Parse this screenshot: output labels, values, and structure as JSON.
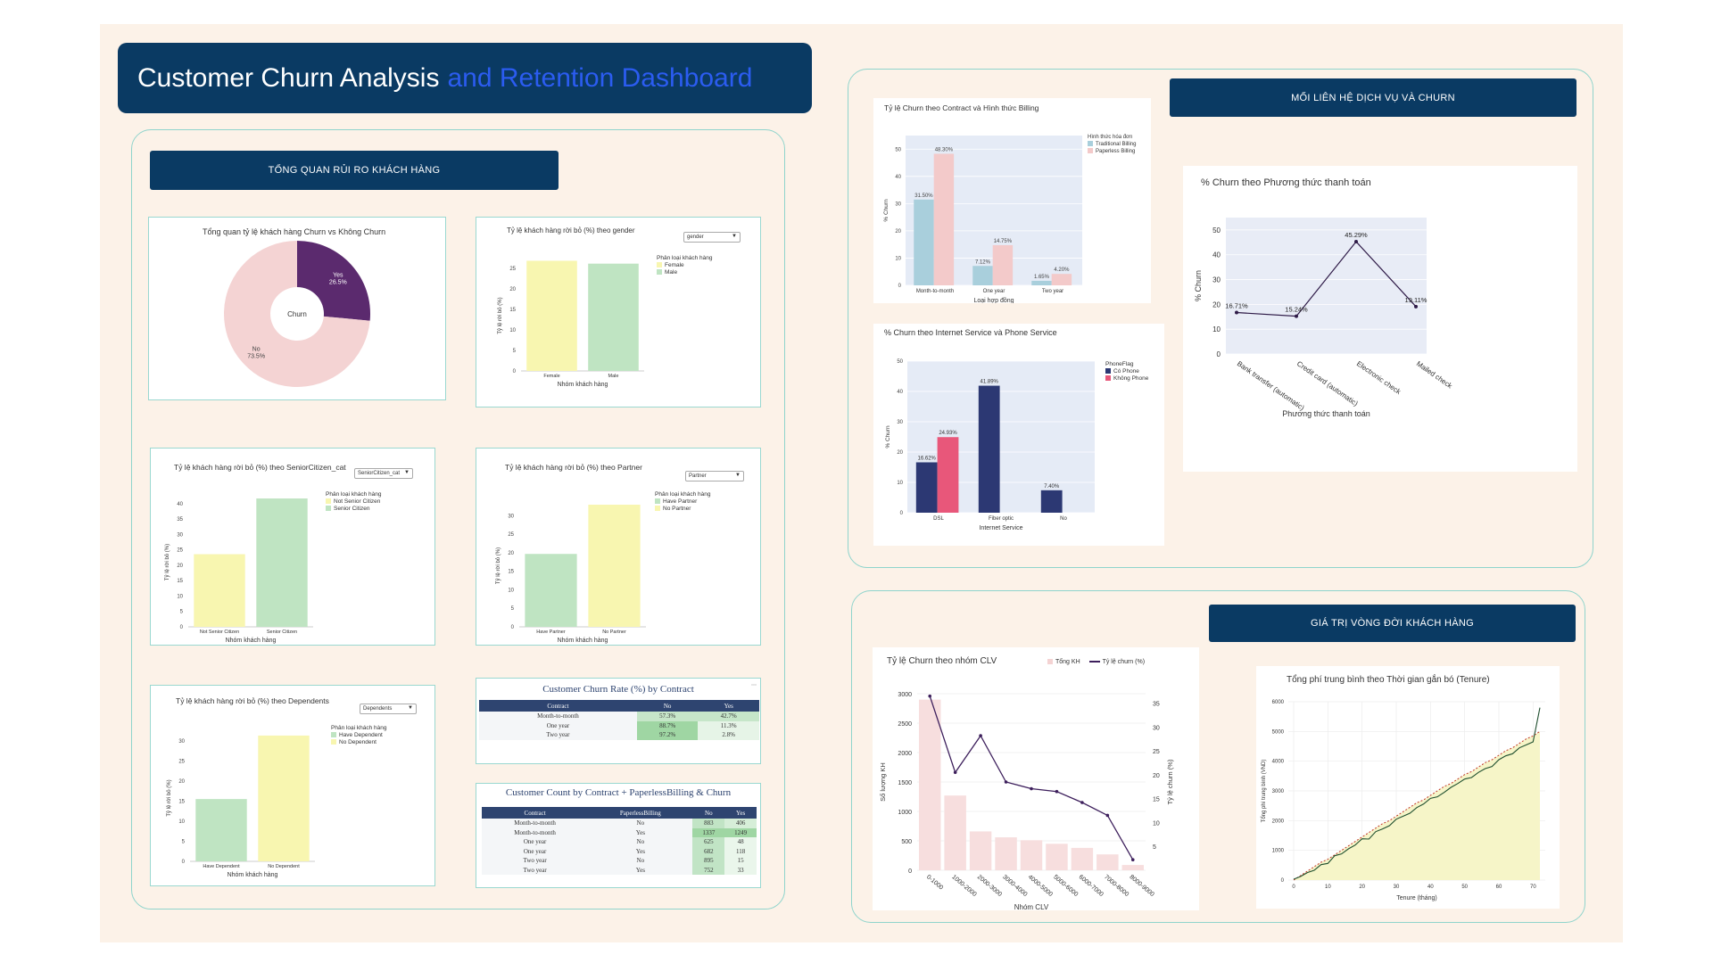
{
  "dashboard": {
    "title_part1": "Customer Churn Analysis",
    "title_part2": "and Retention Dashboard"
  },
  "sections": {
    "risk": "TỔNG QUAN RỦI RO KHÁCH HÀNG",
    "service": "MỐI LIÊN HỆ DỊCH VỤ VÀ CHURN",
    "clv": "GIÁ TRỊ VÒNG ĐỜI KHÁCH HÀNG"
  },
  "colors": {
    "navy": "#0a3a63",
    "accent_blue": "#2b5cf0",
    "teal_border": "#8fd4cc",
    "yellow_bar": "#f8f6b0",
    "green_bar": "#bfe4c2"
  },
  "pie": {
    "title": "Tổng quan tỷ lệ khách hàng Churn vs Không Churn",
    "center": "Churn",
    "chart_data": {
      "type": "pie",
      "categories": [
        "Yes",
        "No"
      ],
      "values": [
        26.5,
        73.5
      ],
      "labels": [
        "Yes\n26.5%",
        "No\n73.5%"
      ],
      "colors": [
        "#5b2a6e",
        "#f4d3d3"
      ]
    }
  },
  "gender": {
    "title": "Tỷ lệ khách hàng rời bỏ (%) theo gender",
    "dropdown": "gender",
    "legend_title": "Phân loại khách hàng",
    "chart_data": {
      "type": "bar",
      "categories": [
        "Female",
        "Male"
      ],
      "values": [
        26.9,
        26.2
      ],
      "series_names": [
        "Female",
        "Male"
      ],
      "xlabel": "Nhóm khách hàng",
      "ylabel": "Tỷ lệ rời bỏ (%)",
      "ylim": [
        0,
        27
      ],
      "yticks": [
        0,
        5,
        10,
        15,
        20,
        25
      ]
    }
  },
  "senior": {
    "title": "Tỷ lệ khách hàng rời bỏ (%) theo SeniorCitizen_cat",
    "dropdown": "SeniorCitizen_cat",
    "legend_title": "Phân loại khách hàng",
    "chart_data": {
      "type": "bar",
      "categories": [
        "Not Senior Citizen",
        "Senior Citizen"
      ],
      "values": [
        23.6,
        41.7
      ],
      "series_names": [
        "Not Senior Citizen",
        "Senior Citizen"
      ],
      "xlabel": "Nhóm khách hàng",
      "ylabel": "Tỷ lệ rời bỏ (%)",
      "ylim": [
        0,
        42
      ],
      "yticks": [
        0,
        5,
        10,
        15,
        20,
        25,
        30,
        35,
        40
      ]
    }
  },
  "partner": {
    "title": "Tỷ lệ khách hàng rời bỏ (%) theo Partner",
    "dropdown": "Partner",
    "legend_title": "Phân loại khách hàng",
    "chart_data": {
      "type": "bar",
      "categories": [
        "Have Partner",
        "No Partner"
      ],
      "values": [
        19.7,
        33.0
      ],
      "series_names": [
        "Have Partner",
        "No Partner"
      ],
      "xlabel": "Nhóm khách hàng",
      "ylabel": "Tỷ lệ rời bỏ (%)",
      "ylim": [
        0,
        33
      ],
      "yticks": [
        0,
        5,
        10,
        15,
        20,
        25,
        30
      ]
    }
  },
  "dependents": {
    "title": "Tỷ lệ khách hàng rời bỏ (%) theo Dependents",
    "dropdown": "Dependents",
    "legend_title": "Phân loại khách hàng",
    "chart_data": {
      "type": "bar",
      "categories": [
        "Have Dependent",
        "No Dependent"
      ],
      "values": [
        15.5,
        31.3
      ],
      "series_names": [
        "Have Dependent",
        "No Dependent"
      ],
      "xlabel": "Nhóm khách hàng",
      "ylabel": "Tỷ lệ rời bỏ (%)",
      "ylim": [
        0,
        31.5
      ],
      "yticks": [
        0,
        5,
        10,
        15,
        20,
        25,
        30
      ]
    }
  },
  "table1": {
    "title": "Customer Churn Rate (%) by Contract",
    "headers": [
      "Contract",
      "No",
      "Yes"
    ],
    "rows": [
      [
        "Month-to-month",
        "57.3%",
        "42.7%"
      ],
      [
        "One year",
        "88.7%",
        "11.3%"
      ],
      [
        "Two year",
        "97.2%",
        "2.8%"
      ]
    ],
    "chart_data": {
      "type": "table",
      "columns": [
        "Contract",
        "No",
        "Yes"
      ],
      "rows": [
        [
          "Month-to-month",
          "57.3%",
          "42.7%"
        ],
        [
          "One year",
          "88.7%",
          "11.3%"
        ],
        [
          "Two year",
          "97.2%",
          "2.8%"
        ]
      ]
    }
  },
  "table2": {
    "title": "Customer Count by Contract + PaperlessBilling & Churn",
    "headers": [
      "Contract",
      "PaperlessBilling",
      "No",
      "Yes"
    ],
    "rows": [
      [
        "Month-to-month",
        "No",
        "883",
        "406"
      ],
      [
        "Month-to-month",
        "Yes",
        "1337",
        "1249"
      ],
      [
        "One year",
        "No",
        "625",
        "48"
      ],
      [
        "One year",
        "Yes",
        "682",
        "118"
      ],
      [
        "Two year",
        "No",
        "895",
        "15"
      ],
      [
        "Two year",
        "Yes",
        "752",
        "33"
      ]
    ],
    "chart_data": {
      "type": "table",
      "columns": [
        "Contract",
        "PaperlessBilling",
        "No",
        "Yes"
      ],
      "rows": [
        [
          "Month-to-month",
          "No",
          "883",
          "406"
        ],
        [
          "Month-to-month",
          "Yes",
          "1337",
          "1249"
        ],
        [
          "One year",
          "No",
          "625",
          "48"
        ],
        [
          "One year",
          "Yes",
          "682",
          "118"
        ],
        [
          "Two year",
          "No",
          "895",
          "15"
        ],
        [
          "Two year",
          "Yes",
          "752",
          "33"
        ]
      ]
    }
  },
  "contract_billing": {
    "title": "Tỷ lệ Churn theo Contract và Hình thức Billing",
    "legend_title": "Hình thức hóa đơn",
    "chart_data": {
      "type": "bar",
      "categories": [
        "Month-to-month",
        "One year",
        "Two year"
      ],
      "series": [
        {
          "name": "Traditional Billing",
          "values": [
            31.5,
            7.12,
            1.65
          ],
          "color": "#a9cfdc"
        },
        {
          "name": "Paperless Billing",
          "values": [
            48.3,
            14.75,
            4.2
          ],
          "color": "#f3caca"
        }
      ],
      "labels": [
        [
          "31.50%",
          "7.12%",
          "1.65%"
        ],
        [
          "48.30%",
          "14.75%",
          "4.20%"
        ]
      ],
      "xlabel": "Loại hợp đồng",
      "ylabel": "% Churn",
      "ylim": [
        0,
        55
      ],
      "yticks": [
        0,
        10,
        20,
        30,
        40,
        50
      ]
    }
  },
  "internet_phone": {
    "title": "% Churn theo Internet Service và Phone Service",
    "legend_title": "PhoneFlag",
    "chart_data": {
      "type": "bar",
      "categories": [
        "DSL",
        "Fiber optic",
        "No"
      ],
      "series": [
        {
          "name": "Có Phone",
          "values": [
            16.62,
            41.89,
            7.4
          ],
          "color": "#2c3873"
        },
        {
          "name": "Không Phone",
          "values": [
            24.93,
            null,
            null
          ],
          "color": "#e8577a"
        }
      ],
      "labels": [
        [
          "16.62%",
          "41.89%",
          "7.40%"
        ],
        [
          "24.93%",
          "",
          ""
        ]
      ],
      "xlabel": "Internet Service",
      "ylabel": "% Churn",
      "ylim": [
        0,
        50
      ],
      "yticks": [
        0,
        10,
        20,
        30,
        40,
        50
      ]
    }
  },
  "payment": {
    "title": "% Churn theo Phương thức thanh toán",
    "chart_data": {
      "type": "line",
      "categories": [
        "Bank transfer (automatic)",
        "Credit card (automatic)",
        "Electronic check",
        "Mailed check"
      ],
      "values": [
        16.71,
        15.24,
        45.29,
        19.11
      ],
      "labels": [
        "16.71%",
        "15.24%",
        "45.29%",
        "19.11%"
      ],
      "xlabel": "Phương thức thanh toán",
      "ylabel": "% Churn",
      "ylim": [
        0,
        55
      ],
      "yticks": [
        0,
        10,
        20,
        30,
        40,
        50
      ]
    }
  },
  "clv_chart": {
    "title": "Tỷ lệ Churn theo nhóm CLV",
    "legend": [
      "Tổng KH",
      "Tỷ lệ churn (%)"
    ],
    "chart_data": {
      "type": "bar",
      "categories": [
        "0-1000",
        "1000-2000",
        "2000-3000",
        "3000-4000",
        "4000-5000",
        "5000-6000",
        "6000-7000",
        "7000-8000",
        "8000-9000"
      ],
      "series": [
        {
          "name": "Tổng KH",
          "values": [
            2900,
            1270,
            660,
            560,
            510,
            450,
            380,
            270,
            90
          ]
        },
        {
          "name": "Tỷ lệ churn (%)",
          "values": [
            36.5,
            20.5,
            28.2,
            18.5,
            17.1,
            16.5,
            14.2,
            11.5,
            2.2
          ]
        }
      ],
      "xlabel": "Nhóm CLV",
      "ylabel": "Số lượng KH",
      "y2label": "Tỷ lệ churn (%)",
      "ylim": [
        0,
        3000
      ],
      "yticks": [
        0,
        500,
        1000,
        1500,
        2000,
        2500,
        3000
      ],
      "y2lim": [
        0,
        37
      ],
      "y2ticks": [
        5,
        10,
        15,
        20,
        25,
        30,
        35
      ]
    }
  },
  "tenure_chart": {
    "title": "Tổng phí trung bình theo Thời gian gắn bó (Tenure)",
    "chart_data": {
      "type": "area",
      "x": [
        0,
        2,
        4,
        6,
        8,
        10,
        12,
        14,
        16,
        18,
        20,
        22,
        24,
        26,
        28,
        30,
        32,
        34,
        36,
        38,
        40,
        42,
        44,
        46,
        48,
        50,
        52,
        54,
        56,
        58,
        60,
        62,
        64,
        66,
        68,
        70,
        72
      ],
      "values": [
        30,
        120,
        250,
        330,
        520,
        560,
        820,
        880,
        1050,
        1180,
        1390,
        1380,
        1630,
        1720,
        1830,
        2050,
        2150,
        2250,
        2440,
        2560,
        2750,
        2800,
        2950,
        3120,
        3250,
        3400,
        3450,
        3620,
        3750,
        3820,
        4050,
        4180,
        4250,
        4450,
        4550,
        4650,
        5800
      ],
      "trend": [
        0,
        150,
        300,
        450,
        600,
        700,
        850,
        1000,
        1150,
        1300,
        1450,
        1600,
        1750,
        1900,
        2000,
        2150,
        2300,
        2450,
        2600,
        2700,
        2850,
        3000,
        3150,
        3250,
        3400,
        3550,
        3650,
        3800,
        3950,
        4050,
        4200,
        4350,
        4450,
        4600,
        4750,
        4850,
        5000
      ],
      "xlabel": "Tenure (tháng)",
      "ylabel": "Tổng phí trung bình (VND)",
      "ylim": [
        0,
        6000
      ],
      "yticks": [
        0,
        1000,
        2000,
        3000,
        4000,
        5000,
        6000
      ],
      "xticks": [
        0,
        10,
        20,
        30,
        40,
        50,
        60,
        70
      ]
    }
  }
}
